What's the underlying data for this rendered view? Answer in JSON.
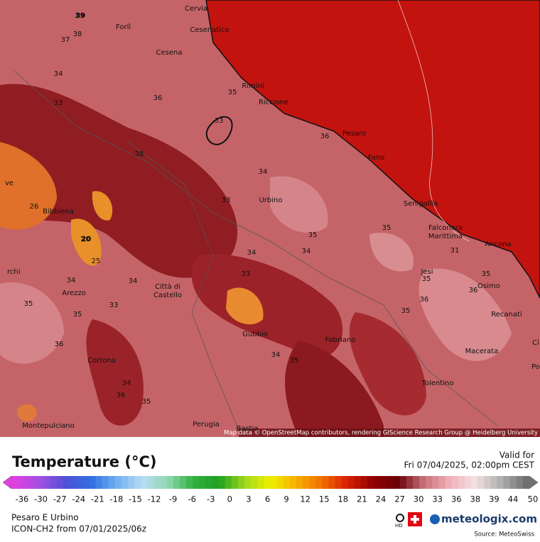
{
  "map": {
    "places": [
      "Cervia",
      "Cesenatico",
      "Forlì",
      "Cesena",
      "Rimini",
      "Riccione",
      "Pesaro",
      "Fano",
      "Urbino",
      "Senigallia",
      "Falconara",
      "Marittima",
      "Ancona",
      "Jesi",
      "Osimo",
      "Recanati",
      "Fabriano",
      "Macerata",
      "Tolentino",
      "Gubbio",
      "Città di",
      "Castello",
      "Arezzo",
      "Cortona",
      "Bibbiena",
      "Montepulciano",
      "Perugia",
      "Bastia",
      "ve",
      "rchi",
      "Ci",
      "Por"
    ],
    "temperatures": [
      "39",
      "38",
      "37",
      "34",
      "33",
      "35",
      "33",
      "36",
      "34",
      "33",
      "26",
      "20",
      "25",
      "34",
      "34",
      "35",
      "35",
      "36",
      "34",
      "36",
      "35",
      "34",
      "35",
      "35",
      "35",
      "34",
      "34",
      "35",
      "35",
      "36",
      "36",
      "35",
      "33",
      "36",
      "31",
      "38",
      "33"
    ],
    "attribution": "Map data © OpenStreetMap contributors, rendering GIScience Research Group @ Heidelberg University"
  },
  "legend": {
    "title": "Temperature (°C)",
    "ticks": [
      "-36",
      "-30",
      "-27",
      "-24",
      "-21",
      "-18",
      "-15",
      "-12",
      "-9",
      "-6",
      "-3",
      "0",
      "3",
      "6",
      "9",
      "12",
      "15",
      "18",
      "21",
      "24",
      "27",
      "30",
      "33",
      "36",
      "38",
      "39",
      "44",
      "50"
    ]
  },
  "footer": {
    "valid_label": "Valid for",
    "valid_time": "Fri 07/04/2025, 02:00pm CEST",
    "region": "Pesaro E Urbino",
    "model": "ICON-CH2 from  07/01/2025/06z",
    "hd": "HD",
    "brand": "meteologix.com",
    "source": "Source: MeteoSwiss"
  }
}
